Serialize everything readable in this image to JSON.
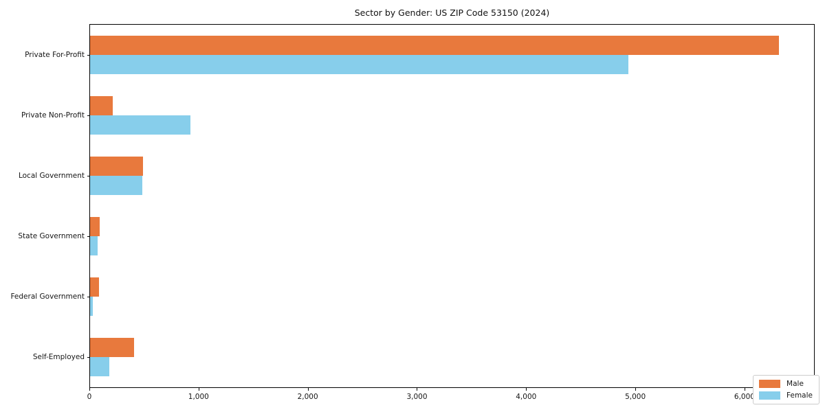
{
  "chart_data": {
    "type": "bar",
    "orientation": "horizontal",
    "title": "Sector by Gender: US ZIP Code 53150 (2024)",
    "categories": [
      "Private For-Profit",
      "Private Non-Profit",
      "Local Government",
      "State Government",
      "Federal Government",
      "Self-Employed"
    ],
    "series": [
      {
        "name": "Male",
        "color": "#e8793d",
        "values": [
          6310,
          210,
          485,
          88,
          80,
          400
        ]
      },
      {
        "name": "Female",
        "color": "#87ceeb",
        "values": [
          4930,
          920,
          480,
          70,
          25,
          175
        ]
      }
    ],
    "xlabel": "",
    "ylabel": "",
    "xlim": [
      0,
      6630
    ],
    "x_ticks": [
      0,
      1000,
      2000,
      3000,
      4000,
      5000,
      6000
    ],
    "x_tick_labels": [
      "0",
      "1,000",
      "2,000",
      "3,000",
      "4,000",
      "5,000",
      "6,000"
    ],
    "grid": false,
    "legend": {
      "position": "lower-right",
      "entries": [
        "Male",
        "Female"
      ]
    }
  }
}
